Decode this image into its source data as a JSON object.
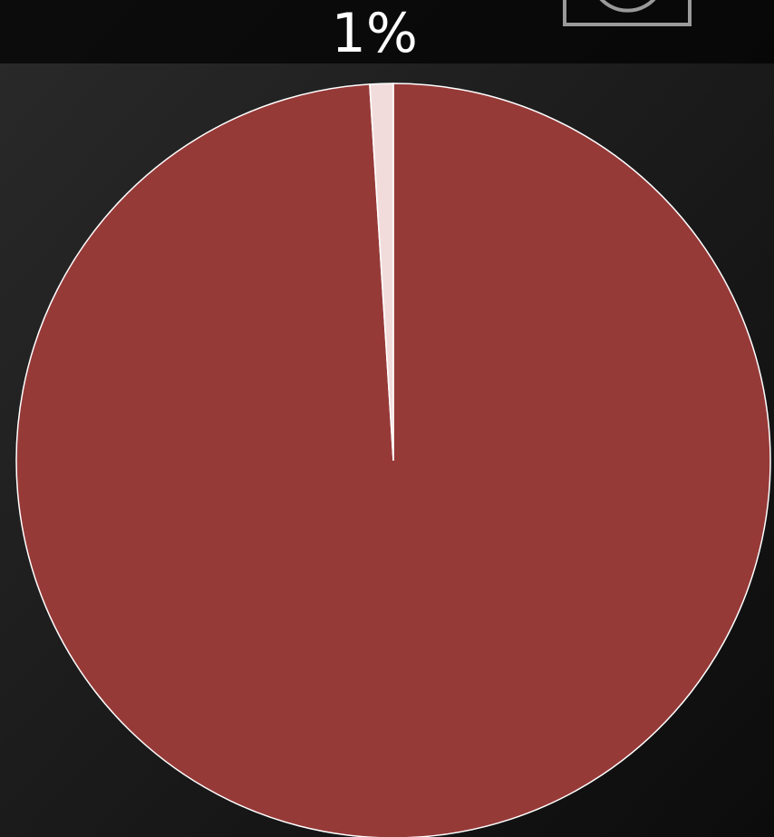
{
  "chart_data": {
    "type": "pie",
    "values": [
      99,
      1
    ],
    "value_labels": [
      null,
      "1%"
    ],
    "colors": [
      "#963a38",
      "#f2dcdb"
    ]
  }
}
